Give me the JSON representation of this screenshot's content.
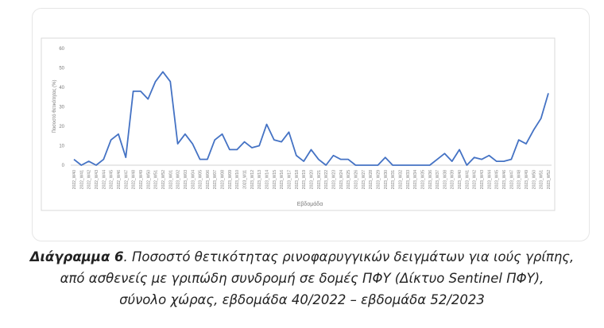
{
  "chart_data": {
    "type": "line",
    "y_label": "Ποσοστό θετικότητας (%)",
    "x_label": "Εβδομάδα",
    "categories": [
      "2022_W40",
      "2022_W41",
      "2022_W42",
      "2022_W43",
      "2022_W44",
      "2022_W45",
      "2022_W46",
      "2022_W47",
      "2022_W48",
      "2022_W49",
      "2022_W50",
      "2022_W51",
      "2022_W52",
      "2023_W01",
      "2023_W02",
      "2023_W03",
      "2023_W04",
      "2023_W05",
      "2023_W06",
      "2023_W07",
      "2023_W08",
      "2023_W09",
      "2023_W10",
      "2023_W11",
      "2023_W12",
      "2023_W13",
      "2023_W14",
      "2023_W15",
      "2023_W16",
      "2023_W17",
      "2023_W18",
      "2023_W19",
      "2023_W20",
      "2023_W21",
      "2023_W22",
      "2023_W23",
      "2023_W24",
      "2023_W25",
      "2023_W26",
      "2023_W27",
      "2023_W28",
      "2023_W29",
      "2023_W30",
      "2023_W31",
      "2023_W32",
      "2023_W33",
      "2023_W34",
      "2023_W35",
      "2023_W36",
      "2023_W37",
      "2023_W38",
      "2023_W39",
      "2023_W40",
      "2023_W41",
      "2023_W42",
      "2023_W43",
      "2023_W44",
      "2023_W45",
      "2023_W46",
      "2023_W47",
      "2023_W48",
      "2023_W49",
      "2023_W50",
      "2023_W51",
      "2023_W52"
    ],
    "values": [
      3,
      0,
      2,
      0,
      3,
      13,
      16,
      4,
      38,
      38,
      34,
      43,
      48,
      43,
      11,
      16,
      11,
      3,
      3,
      13,
      16,
      8,
      8,
      12,
      9,
      10,
      21,
      13,
      12,
      17,
      5,
      2,
      8,
      3,
      0,
      5,
      3,
      3,
      0,
      0,
      0,
      0,
      4,
      0,
      0,
      0,
      0,
      0,
      0,
      3,
      6,
      2,
      8,
      0,
      4,
      3,
      5,
      2,
      2,
      3,
      13,
      11,
      18,
      24,
      37
    ],
    "color": "#4472c4",
    "ylim": [
      0,
      60
    ],
    "yticks": [
      0,
      10,
      20,
      30,
      40,
      50,
      60
    ]
  },
  "caption": {
    "label": "Διάγραμμα 6",
    "lines": [
      ". Ποσοστό θετικότητας ρινοφαρυγγικών δειγμάτων για ιούς γρίπης,",
      "από ασθενείς με γριπώδη συνδρομή σε δομές ΠΦΥ (Δίκτυο Sentinel ΠΦΥ),",
      "σύνολο χώρας, εβδομάδα 40/2022 – εβδομάδα 52/2023"
    ]
  }
}
